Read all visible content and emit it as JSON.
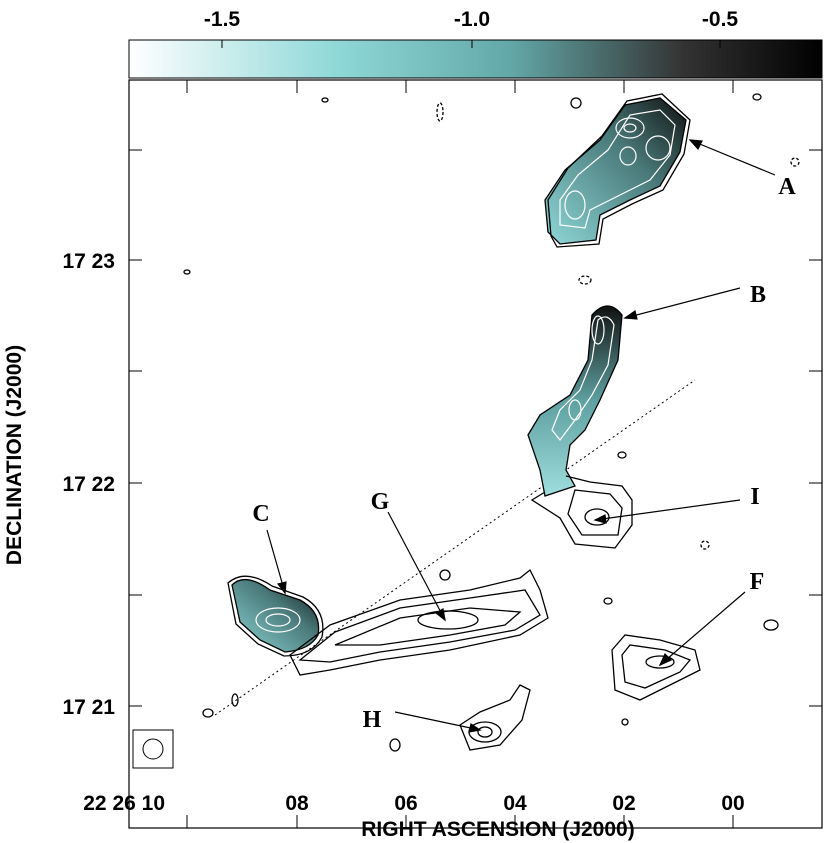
{
  "colorbar": {
    "ticks": [
      "-1.5",
      "-1.0",
      "-0.5"
    ]
  },
  "x_axis": {
    "label": "RIGHT ASCENSION (J2000)",
    "ticks": [
      "22 26 10",
      "08",
      "06",
      "04",
      "02",
      "00"
    ]
  },
  "y_axis": {
    "label": "DECLINATION (J2000)",
    "ticks": [
      "17 23",
      "17 22",
      "17 21"
    ]
  },
  "sources": [
    "A",
    "B",
    "C",
    "G",
    "I",
    "F",
    "H"
  ]
}
